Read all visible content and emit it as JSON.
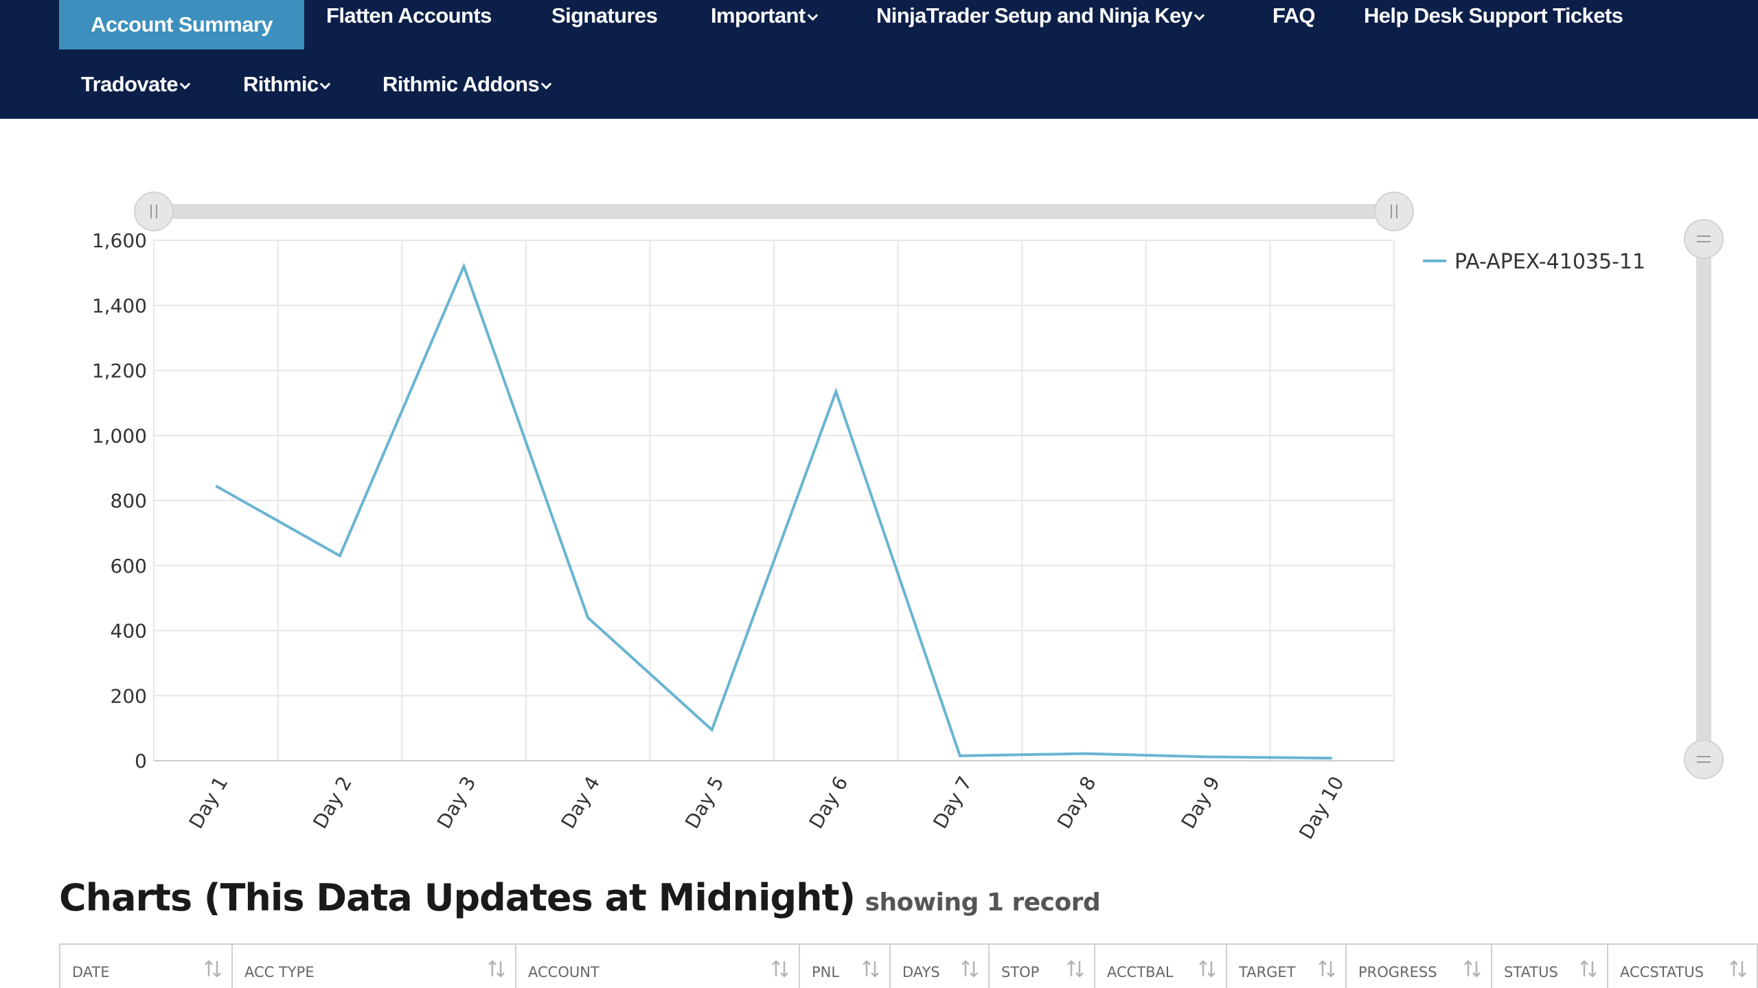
{
  "nav": {
    "row1": [
      {
        "label": "Account Summary",
        "active": true,
        "dropdown": false
      },
      {
        "label": "Flatten Accounts",
        "active": false,
        "dropdown": false
      },
      {
        "label": "Signatures",
        "active": false,
        "dropdown": false
      },
      {
        "label": "Important",
        "active": false,
        "dropdown": true
      },
      {
        "label": "NinjaTrader Setup and Ninja Key",
        "active": false,
        "dropdown": true
      },
      {
        "label": "FAQ",
        "active": false,
        "dropdown": false
      },
      {
        "label": "Help Desk Support Tickets",
        "active": false,
        "dropdown": false
      }
    ],
    "row2": [
      {
        "label": "Tradovate",
        "active": false,
        "dropdown": true
      },
      {
        "label": "Rithmic",
        "active": false,
        "dropdown": true
      },
      {
        "label": "Rithmic Addons",
        "active": false,
        "dropdown": true
      }
    ]
  },
  "colors": {
    "nav_bg": "#0c1f49",
    "nav_active": "#3d8fbd",
    "series": "#6ab4d2",
    "grid": "#e6e6e6",
    "scrollbar": "#dcdcdc"
  },
  "chart_data": {
    "type": "line",
    "categories": [
      "Day 1",
      "Day 2",
      "Day 3",
      "Day 4",
      "Day 5",
      "Day 6",
      "Day 7",
      "Day 8",
      "Day 9",
      "Day 10"
    ],
    "series": [
      {
        "name": "PA-APEX-41035-11",
        "values": [
          845,
          630,
          1520,
          440,
          95,
          1135,
          15,
          22,
          12,
          8
        ]
      }
    ],
    "ylim": [
      0,
      1600
    ],
    "yticks": [
      0,
      200,
      400,
      600,
      800,
      1000,
      1200,
      1400,
      1600
    ],
    "ytick_labels": [
      "0",
      "200",
      "400",
      "600",
      "800",
      "1,000",
      "1,200",
      "1,400",
      "1,600"
    ],
    "grid": true,
    "legend_position": "top-right",
    "xlabel": "",
    "ylabel": ""
  },
  "section": {
    "title": "Charts (This Data Updates at Midnight)",
    "record_count": "showing 1 record"
  },
  "table": {
    "columns": [
      "Date",
      "Acc Type",
      "Account",
      "PNL",
      "Days",
      "Stop",
      "AccTBal",
      "Target",
      "Progress",
      "Status",
      "AccStatus"
    ]
  }
}
